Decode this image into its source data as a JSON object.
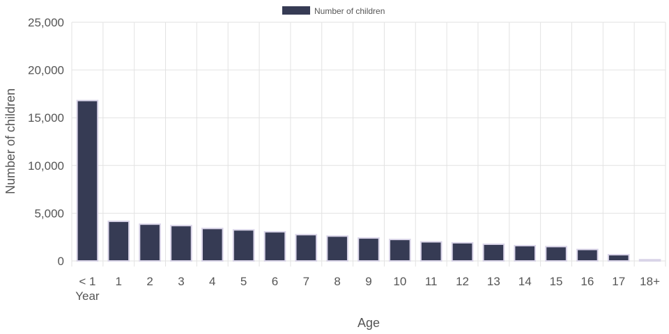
{
  "chart_data": {
    "type": "bar",
    "categories": [
      "< 1\nYear",
      "1",
      "2",
      "3",
      "4",
      "5",
      "6",
      "7",
      "8",
      "9",
      "10",
      "11",
      "12",
      "13",
      "14",
      "15",
      "16",
      "17",
      "18+"
    ],
    "series": [
      {
        "name": "Number of children",
        "values": [
          16800,
          4150,
          3850,
          3700,
          3400,
          3250,
          3050,
          2750,
          2600,
          2400,
          2250,
          2000,
          1900,
          1750,
          1600,
          1500,
          1200,
          650,
          130
        ]
      }
    ],
    "xlabel": "Age",
    "ylabel": "Number of children",
    "ylim": [
      0,
      25000
    ],
    "yticks": [
      0,
      5000,
      10000,
      15000,
      20000,
      25000
    ],
    "ytick_labels": [
      "0",
      "5,000",
      "10,000",
      "15,000",
      "20,000",
      "25,000"
    ],
    "grid": true,
    "legend_position": "top-center",
    "colors": {
      "bar": "#363b54",
      "bar_border": "#d9d4e8",
      "grid": "#e2e2e2",
      "text": "#555555"
    }
  }
}
